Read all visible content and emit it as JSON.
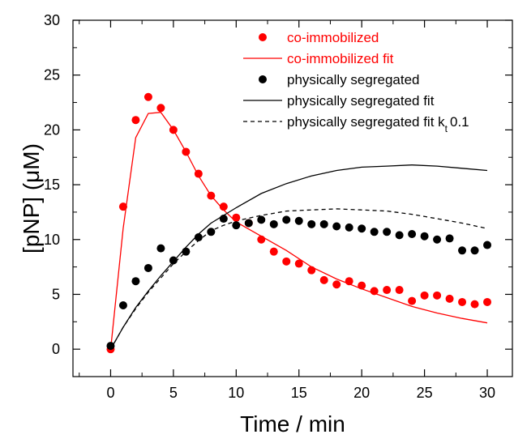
{
  "chart_data": {
    "type": "scatter",
    "xlabel": "Time / min",
    "ylabel": "[pNP] (μM)",
    "xlim": [
      -3,
      32
    ],
    "ylim": [
      -2.5,
      30
    ],
    "xticks": [
      0,
      5,
      10,
      15,
      20,
      25,
      30
    ],
    "yticks": [
      0,
      5,
      10,
      15,
      20,
      25,
      30
    ],
    "x_tick_labels": [
      "0",
      "5",
      "10",
      "15",
      "20",
      "25",
      "30"
    ],
    "y_tick_labels": [
      "0",
      "5",
      "10",
      "15",
      "20",
      "25",
      "30"
    ],
    "grid": false,
    "legend_position": "top-right",
    "series": [
      {
        "name": "co-immobilized",
        "kind": "markers",
        "color": "#ff0000",
        "x": [
          0,
          1,
          2,
          3,
          4,
          5,
          6,
          7,
          8,
          9,
          10,
          11,
          12,
          13,
          14,
          15,
          16,
          17,
          18,
          19,
          20,
          21,
          22,
          23,
          24,
          25,
          26,
          27,
          28,
          29,
          30
        ],
        "y": [
          0,
          13,
          20.9,
          23,
          22,
          20,
          18,
          16,
          14,
          13,
          12,
          11.5,
          10,
          8.9,
          8,
          7.8,
          7.2,
          6.3,
          5.9,
          6.2,
          5.8,
          5.3,
          5.4,
          5.4,
          4.4,
          4.9,
          4.9,
          4.6,
          4.3,
          4.1,
          4.3
        ]
      },
      {
        "name": "co-immobilized fit",
        "kind": "solid-line",
        "color": "#ff0000",
        "x": [
          0,
          1,
          2,
          3,
          4,
          5,
          6,
          7,
          8,
          9,
          10,
          12,
          14,
          16,
          18,
          20,
          22,
          24,
          26,
          28,
          30
        ],
        "y": [
          0,
          11,
          19.3,
          21.5,
          21.6,
          20,
          18,
          15.8,
          14,
          12.7,
          11.6,
          10.3,
          9,
          7.5,
          6.4,
          5.5,
          4.7,
          3.9,
          3.3,
          2.8,
          2.4
        ]
      },
      {
        "name": "physically segregated",
        "kind": "markers",
        "color": "#000000",
        "x": [
          0,
          1,
          2,
          3,
          4,
          5,
          6,
          7,
          8,
          9,
          10,
          11,
          12,
          13,
          14,
          15,
          16,
          17,
          18,
          19,
          20,
          21,
          22,
          23,
          24,
          25,
          26,
          27,
          28,
          29,
          30
        ],
        "y": [
          0.3,
          4,
          6.2,
          7.4,
          9.2,
          8.1,
          8.9,
          10.2,
          10.7,
          11.9,
          11.3,
          11.5,
          11.8,
          11.4,
          11.8,
          11.7,
          11.4,
          11.4,
          11.2,
          11.1,
          11,
          10.7,
          10.7,
          10.4,
          10.5,
          10.3,
          10,
          10.1,
          9,
          9,
          9.5
        ]
      },
      {
        "name": "physically segregated fit",
        "kind": "solid-line",
        "color": "#000000",
        "x": [
          0,
          1,
          2,
          3,
          4,
          5,
          6,
          7,
          8,
          9,
          10,
          12,
          14,
          16,
          18,
          20,
          22,
          24,
          26,
          28,
          30
        ],
        "y": [
          0,
          2,
          3.8,
          5.3,
          6.7,
          8,
          9.3,
          10.5,
          11.5,
          12.2,
          12.9,
          14.2,
          15.1,
          15.8,
          16.3,
          16.6,
          16.7,
          16.8,
          16.7,
          16.5,
          16.3
        ]
      },
      {
        "name": "physically segregated fit k_t 0.1",
        "kind": "dashed-line",
        "color": "#000000",
        "x": [
          0,
          1,
          2,
          3,
          4,
          5,
          6,
          7,
          8,
          9,
          10,
          12,
          14,
          16,
          18,
          20,
          22,
          24,
          26,
          28,
          30
        ],
        "y": [
          0,
          2,
          3.7,
          5.2,
          6.5,
          7.8,
          8.9,
          9.9,
          10.8,
          11.3,
          11.7,
          12.2,
          12.6,
          12.7,
          12.8,
          12.7,
          12.6,
          12.3,
          11.9,
          11.5,
          11
        ]
      }
    ]
  }
}
